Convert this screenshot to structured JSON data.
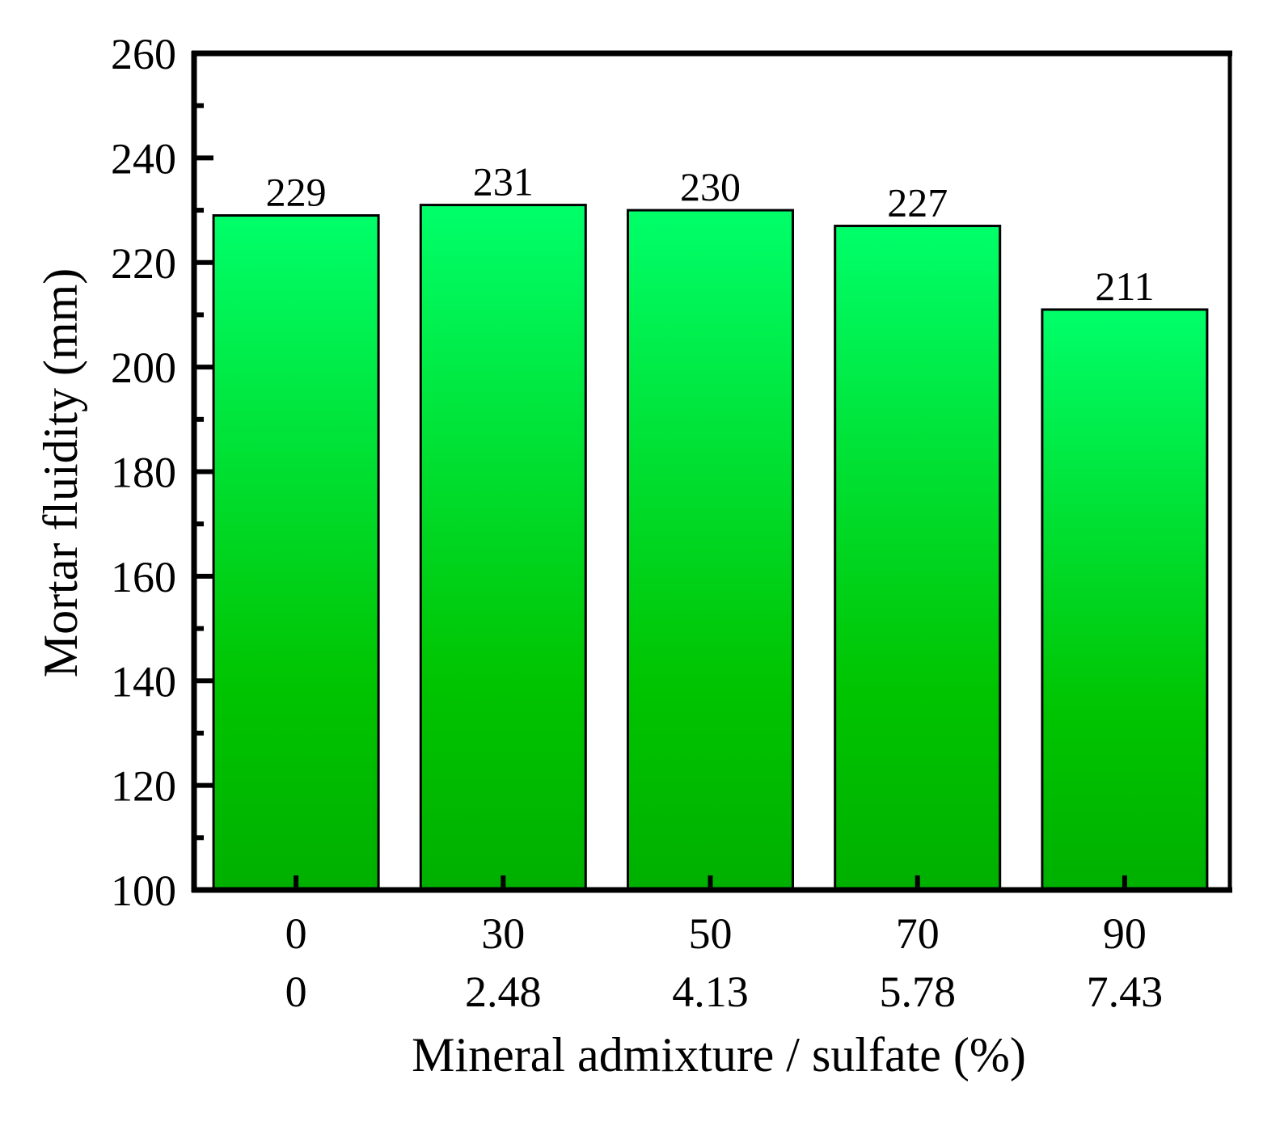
{
  "chart_data": {
    "type": "bar",
    "title": "",
    "xlabel": "Mineral admixture / sulfate (%)",
    "ylabel": "Mortar fluidity (mm)",
    "categories": [
      "0 / 0",
      "30 / 2.48",
      "50 / 4.13",
      "70 / 5.78",
      "90 / 7.43"
    ],
    "x_tick_labels_row1": [
      "0",
      "30",
      "50",
      "70",
      "90"
    ],
    "x_tick_labels_row2": [
      "0",
      "2.48",
      "4.13",
      "5.78",
      "7.43"
    ],
    "values": [
      229,
      231,
      230,
      227,
      211
    ],
    "data_labels": [
      "229",
      "231",
      "230",
      "227",
      "211"
    ],
    "ylim": [
      100,
      260
    ],
    "y_ticks": [
      100,
      120,
      140,
      160,
      180,
      200,
      220,
      240,
      260
    ],
    "y_minor_step": 10,
    "grid": false,
    "legend": null,
    "bar_fill_gradient": {
      "top": "#00ff6a",
      "middle": "#00c400",
      "bottom": "#00b000"
    },
    "bar_edge_color": "#000000"
  }
}
